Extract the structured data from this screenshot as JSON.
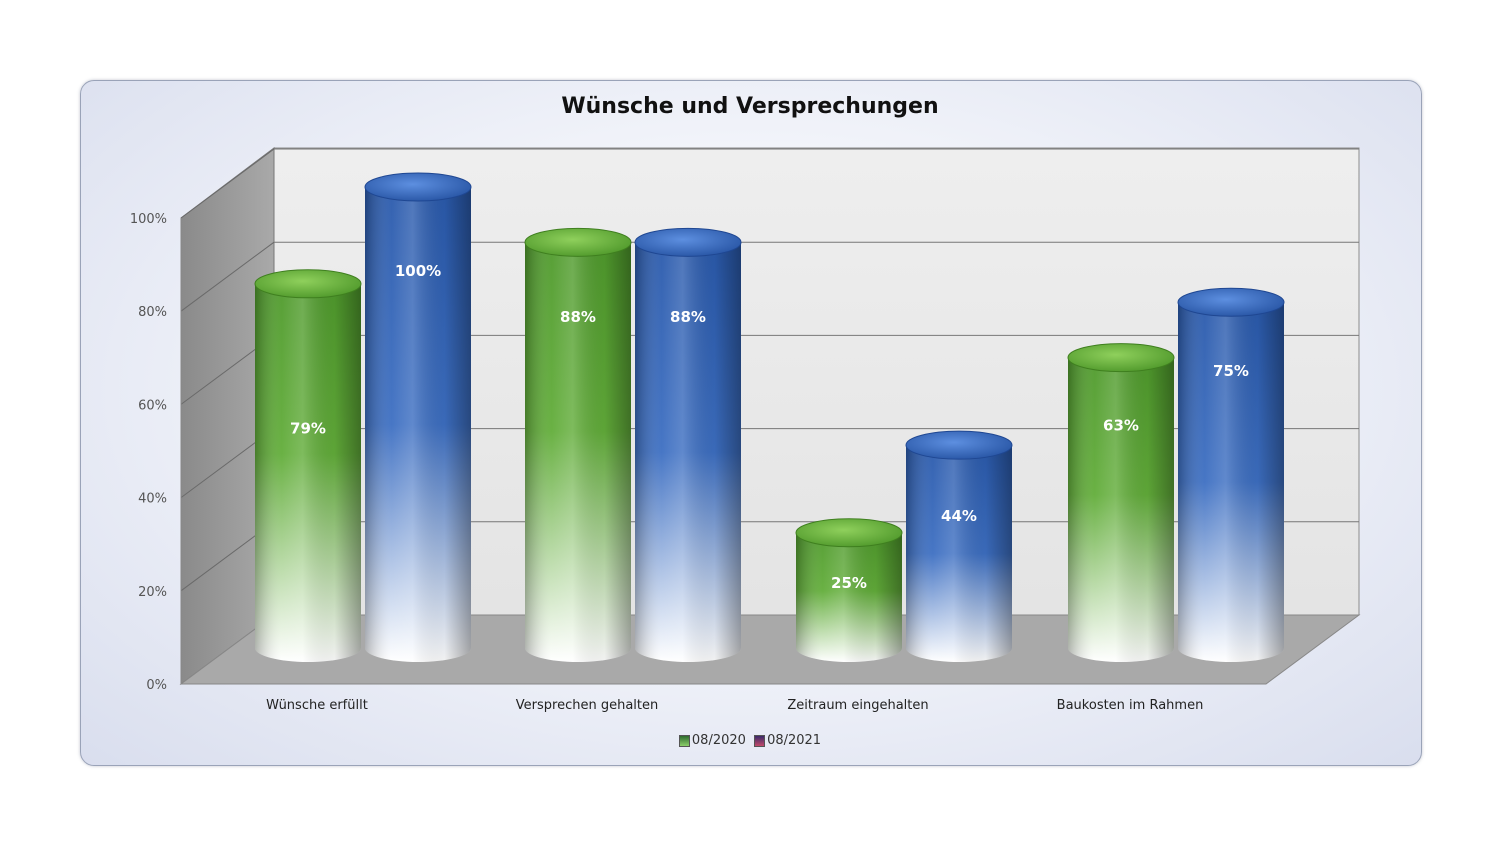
{
  "chart_data": {
    "type": "bar",
    "title": "Wünsche und Versprechungen",
    "categories": [
      "Wünsche erfüllt",
      "Versprechen gehalten",
      "Zeitraum eingehalten",
      "Baukosten im Rahmen"
    ],
    "series": [
      {
        "name": "08/2020",
        "values": [
          79,
          88,
          25,
          63
        ],
        "labels": [
          "79%",
          "88%",
          "25%",
          "63%"
        ],
        "color": "#5aa532"
      },
      {
        "name": "08/2021",
        "values": [
          100,
          88,
          44,
          75
        ],
        "labels": [
          "100%",
          "88%",
          "44%",
          "75%"
        ],
        "color": "#2f62b5"
      }
    ],
    "ylim": [
      0,
      100
    ],
    "yticks": [
      "0%",
      "20%",
      "40%",
      "60%",
      "80%",
      "100%"
    ],
    "grid": true,
    "legend_position": "bottom",
    "style": "3d-cylinder"
  }
}
